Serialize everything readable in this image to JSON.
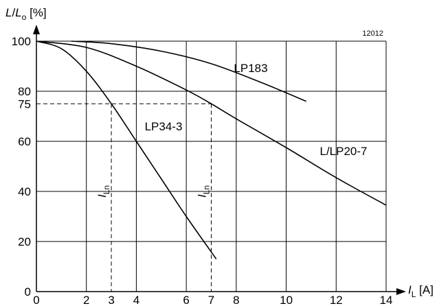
{
  "chart_data": {
    "type": "line",
    "figure_number": "12012",
    "y_axis": {
      "title_main": "L",
      "title_sep": "/",
      "title_sub_main": "L",
      "title_sub": "o",
      "title_unit": "[%]",
      "range": [
        0,
        110
      ],
      "ticks": [
        0,
        20,
        40,
        60,
        75,
        80,
        100
      ],
      "tick_labels": [
        "0",
        "20",
        "40",
        "60",
        "75",
        "80",
        "100"
      ],
      "gridlines": [
        20,
        40,
        60,
        80,
        100
      ]
    },
    "x_axis": {
      "title_main": "I",
      "title_sub": "L",
      "title_unit": "[A]",
      "range": [
        0,
        14.2
      ],
      "ticks": [
        0,
        2,
        3,
        4,
        6,
        7,
        8,
        10,
        12,
        14
      ],
      "tick_labels": [
        "0",
        "2",
        "3",
        "4",
        "6",
        "7",
        "8",
        "10",
        "12",
        "14"
      ],
      "gridlines": [
        2,
        4,
        6,
        8,
        10,
        12,
        14
      ]
    },
    "grid": true,
    "series": [
      {
        "name": "LP183",
        "x": [
          1.4,
          3,
          5,
          7,
          9,
          10.8
        ],
        "y": [
          100,
          99,
          96,
          91,
          83.5,
          76
        ]
      },
      {
        "name": "L/LP20-7",
        "x": [
          0,
          2,
          4,
          6,
          7,
          8,
          10,
          12,
          14
        ],
        "y": [
          100,
          97.5,
          90,
          80.5,
          75,
          69,
          57.5,
          45.5,
          34.5
        ]
      },
      {
        "name": "LP34-3",
        "x": [
          0,
          1,
          2,
          3,
          4,
          5,
          6,
          7.2
        ],
        "y": [
          100,
          97,
          88,
          75,
          60,
          45,
          30,
          13
        ]
      }
    ],
    "reference_lines": [
      {
        "label_main": "I",
        "label_sub": "Ln",
        "x": 3,
        "y": 75
      },
      {
        "label_main": "I",
        "label_sub": "Ln",
        "x": 7,
        "y": 75
      }
    ]
  }
}
